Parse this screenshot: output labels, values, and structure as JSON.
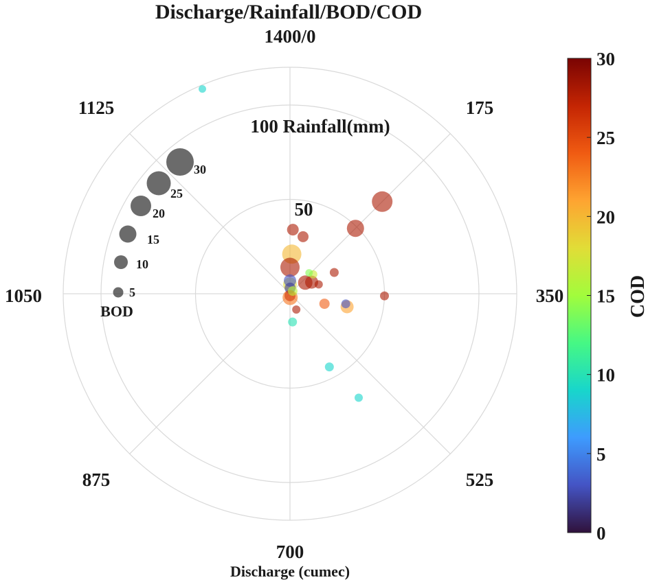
{
  "chart_data": {
    "type": "scatter",
    "subtype": "polar-bubble",
    "title": "Discharge/Rainfall/BOD/COD",
    "xlabel": "Discharge (cumec)",
    "angular_axis": {
      "quantity": "Discharge",
      "range": [
        0,
        1400
      ],
      "zero_position": "top",
      "direction": "clockwise",
      "tick_values": [
        0,
        175,
        350,
        525,
        700,
        875,
        1050,
        1125
      ],
      "tick_labels": [
        "1400/0",
        "175",
        "350",
        "525",
        "700",
        "875",
        "1050",
        "1125"
      ]
    },
    "radial_axis": {
      "quantity": "Rainfall",
      "range": [
        0,
        120
      ],
      "rings": [
        50,
        100
      ],
      "ring_labels": [
        "50",
        "100 Rainfall(mm)"
      ]
    },
    "size_key": {
      "title": "BOD",
      "values": [
        5,
        10,
        15,
        20,
        25,
        30
      ],
      "labels": [
        "5",
        "10",
        "15",
        "20",
        "25",
        "30"
      ]
    },
    "colorbar": {
      "label": "COD",
      "range": [
        0,
        30
      ],
      "ticks": [
        0,
        5,
        10,
        15,
        20,
        25,
        30
      ],
      "tick_labels": [
        "0",
        "5",
        "10",
        "15",
        "20",
        "25",
        "30"
      ],
      "colormap": [
        "#30123b",
        "#4454c4",
        "#3e9bfe",
        "#18d6cb",
        "#46f884",
        "#a2fc3c",
        "#e1dd37",
        "#fea431",
        "#f05b12",
        "#c42503",
        "#7a0403"
      ]
    },
    "points": [
      {
        "discharge": 1310,
        "rainfall": 118,
        "bod": 1,
        "cod": 9
      },
      {
        "discharge": 10,
        "rainfall": 21,
        "bod": 18,
        "cod": 20
      },
      {
        "discharge": 0,
        "rainfall": 14,
        "bod": 18,
        "cod": 28
      },
      {
        "discharge": 0,
        "rainfall": 7,
        "bod": 8,
        "cod": 3
      },
      {
        "discharge": 0,
        "rainfall": 5,
        "bod": 10,
        "cod": 18
      },
      {
        "discharge": 5,
        "rainfall": 3,
        "bod": 6,
        "cod": 2
      },
      {
        "discharge": 175,
        "rainfall": 2,
        "bod": 4,
        "cod": 16
      },
      {
        "discharge": 690,
        "rainfall": 2,
        "bod": 12,
        "cod": 23
      },
      {
        "discharge": 700,
        "rainfall": 1,
        "bod": 6,
        "cod": 26
      },
      {
        "discharge": 10,
        "rainfall": 34,
        "bod": 7,
        "cod": 28
      },
      {
        "discharge": 50,
        "rainfall": 31,
        "bod": 6,
        "cod": 28
      },
      {
        "discharge": 175,
        "rainfall": 49,
        "bod": 15,
        "cod": 28
      },
      {
        "discharge": 175,
        "rainfall": 69,
        "bod": 20,
        "cod": 28
      },
      {
        "discharge": 250,
        "rainfall": 26,
        "bod": 3,
        "cod": 28
      },
      {
        "discharge": 195,
        "rainfall": 16,
        "bod": 2,
        "cod": 17
      },
      {
        "discharge": 210,
        "rainfall": 10,
        "bod": 11,
        "cod": 28
      },
      {
        "discharge": 240,
        "rainfall": 13,
        "bod": 9,
        "cod": 28
      },
      {
        "discharge": 280,
        "rainfall": 16,
        "bod": 2,
        "cod": 28
      },
      {
        "discharge": 165,
        "rainfall": 15,
        "bod": 1,
        "cod": 14
      },
      {
        "discharge": 355,
        "rainfall": 50,
        "bod": 3,
        "cod": 28
      },
      {
        "discharge": 413,
        "rainfall": 19,
        "bod": 5,
        "cod": 24
      },
      {
        "discharge": 390,
        "rainfall": 30,
        "bod": 3,
        "cod": 3
      },
      {
        "discharge": 400,
        "rainfall": 31,
        "bod": 9,
        "cod": 21
      },
      {
        "discharge": 615,
        "rainfall": 9,
        "bod": 2,
        "cod": 28
      },
      {
        "discharge": 680,
        "rainfall": 15,
        "bod": 3,
        "cod": 10
      },
      {
        "discharge": 590,
        "rainfall": 44,
        "bod": 3,
        "cod": 9
      },
      {
        "discharge": 570,
        "rainfall": 66,
        "bod": 2,
        "cod": 9
      }
    ]
  }
}
